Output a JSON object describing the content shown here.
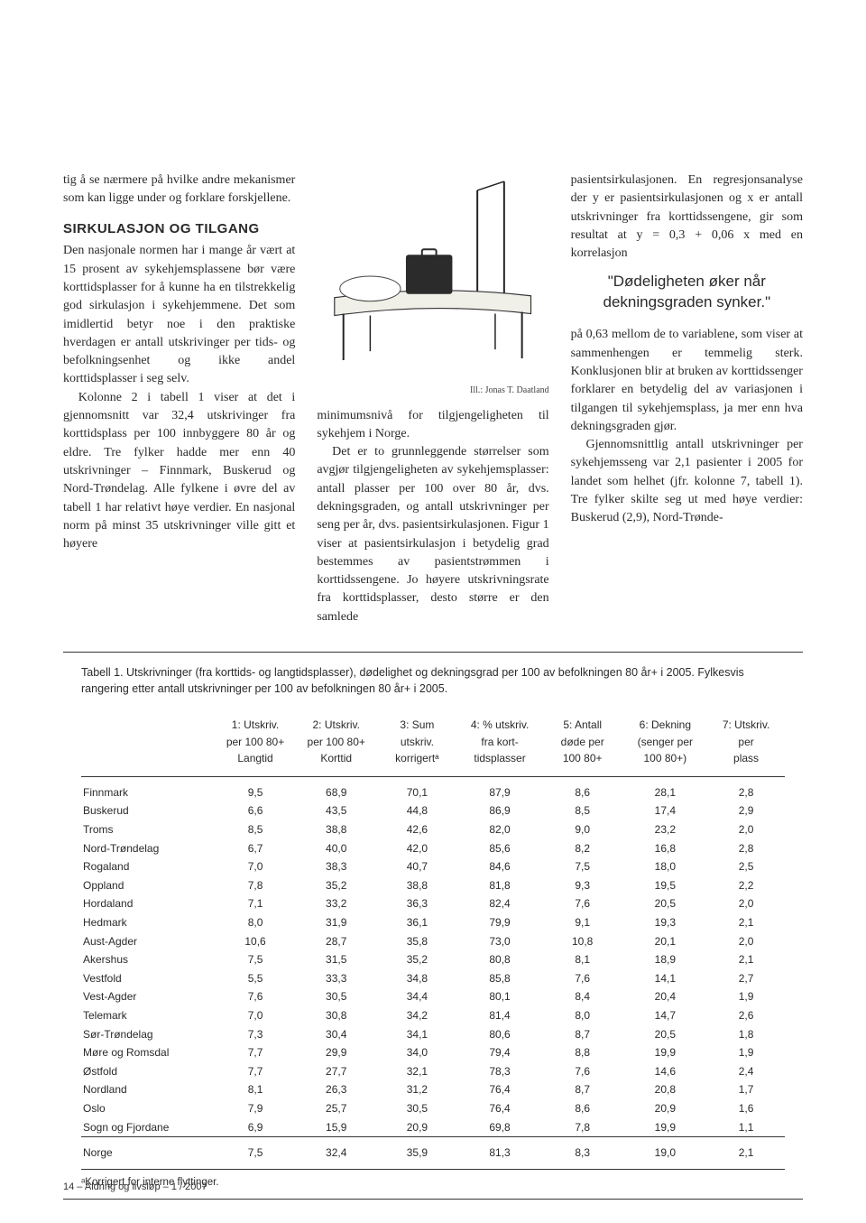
{
  "col1": {
    "intro": "tig å se nærmere på hvilke andre mekanismer som kan ligge under og forklare forskjellene.",
    "heading": "SIRKULASJON OG TILGANG",
    "p1": "Den nasjonale normen har i mange år vært at 15 prosent av sykehjems­plassene bør være korttidsplasser for å kunne ha en tilstrekkelig god sir­kulasjon i sykehjemmene. Det som imidlertid betyr noe i den praktiske hverdagen er antall utskrivinger per tids- og befolkningsenhet og ikke andel korttidsplasser i seg selv.",
    "p2": "Kolonne 2 i tabell 1 viser at det i gjennomsnitt var 32,4 utskrivinger fra korttidsplass per 100 innbyggere 80 år og eldre. Tre fylker hadde mer enn 40 utskrivninger – Finnmark, Buske­rud og Nord-Trøndelag. Alle fylkene i øvre del av tabell 1 har relativt høye verdier. En nasjonal norm på minst 35 utskrivninger ville gitt et høyere"
  },
  "col2": {
    "illCaption": "Ill.: Jonas T. Daatland",
    "p1": "minimumsnivå for tilgjengeligheten til sykehjem i Norge.",
    "p2": "Det er to grunnleggende størrel­ser som avgjør tilgjengeligheten av sykehjemsplasser: antall plasser per 100 over 80 år, dvs. dekningsgraden, og antall utskrivninger per seng per år, dvs. pasientsirkulasjonen. Figur 1 viser at pasientsirkulasjon i bety­delig grad bestemmes av pasient­strømmen i korttidssengene. Jo høy­ere utskrivningsrate fra korttids­plasser, desto større er den samlede"
  },
  "col3": {
    "p1": "pasientsirkulasjonen. En regresjons­analyse der y er pasientsirkulasjonen og x er antall utskrivninger fra korttidssengene, gir som resultat at y = 0,3 + 0,06 x med en korrelasjon",
    "pull": "\"Dødeligheten øker når deknings­graden synker.\"",
    "p2": "på 0,63 mellom de to variablene, som viser at sammenhengen er tem­melig sterk. Konklusjonen blir at bruken av korttidssenger forklarer en betydelig del av variasjonen i tilgan­gen til sykehjemsplass, ja mer enn hva dekningsgraden gjør.",
    "p3": "Gjennomsnittlig antall utskriv­ninger per sykehjemsseng var 2,1 pasienter i 2005 for landet som hel­het (jfr. kolonne 7, tabell 1). Tre fylker skilte seg ut med høye ver­dier: Buskerud (2,9), Nord-Trønde-"
  },
  "table": {
    "caption": "Tabell 1. Utskrivninger (fra korttids- og langtidsplasser), dødelighet og dekningsgrad per 100 av befolkningen 80 år+ i 2005. Fylkesvis rangering etter antall utskrivninger per 100 av befolkningen 80 år+ i 2005.",
    "columns": [
      "",
      "1: Utskriv.\nper 100 80+\nLangtid",
      "2: Utskriv.\nper 100 80+\nKorttid",
      "3: Sum\nutskriv.\nkorrigertᵃ",
      "4: % utskriv.\nfra kort-\ntidsplasser",
      "5: Antall\ndøde per\n100 80+",
      "6: Dekning\n(senger per\n100 80+)",
      "7: Utskriv.\nper\nplass"
    ],
    "rows": [
      [
        "Finnmark",
        "9,5",
        "68,9",
        "70,1",
        "87,9",
        "8,6",
        "28,1",
        "2,8"
      ],
      [
        "Buskerud",
        "6,6",
        "43,5",
        "44,8",
        "86,9",
        "8,5",
        "17,4",
        "2,9"
      ],
      [
        "Troms",
        "8,5",
        "38,8",
        "42,6",
        "82,0",
        "9,0",
        "23,2",
        "2,0"
      ],
      [
        "Nord-Trøndelag",
        "6,7",
        "40,0",
        "42,0",
        "85,6",
        "8,2",
        "16,8",
        "2,8"
      ],
      [
        "Rogaland",
        "7,0",
        "38,3",
        "40,7",
        "84,6",
        "7,5",
        "18,0",
        "2,5"
      ],
      [
        "Oppland",
        "7,8",
        "35,2",
        "38,8",
        "81,8",
        "9,3",
        "19,5",
        "2,2"
      ],
      [
        "Hordaland",
        "7,1",
        "33,2",
        "36,3",
        "82,4",
        "7,6",
        "20,5",
        "2,0"
      ],
      [
        "Hedmark",
        "8,0",
        "31,9",
        "36,1",
        "79,9",
        "9,1",
        "19,3",
        "2,1"
      ],
      [
        "Aust-Agder",
        "10,6",
        "28,7",
        "35,8",
        "73,0",
        "10,8",
        "20,1",
        "2,0"
      ],
      [
        "Akershus",
        "7,5",
        "31,5",
        "35,2",
        "80,8",
        "8,1",
        "18,9",
        "2,1"
      ],
      [
        "Vestfold",
        "5,5",
        "33,3",
        "34,8",
        "85,8",
        "7,6",
        "14,1",
        "2,7"
      ],
      [
        "Vest-Agder",
        "7,6",
        "30,5",
        "34,4",
        "80,1",
        "8,4",
        "20,4",
        "1,9"
      ],
      [
        "Telemark",
        "7,0",
        "30,8",
        "34,2",
        "81,4",
        "8,0",
        "14,7",
        "2,6"
      ],
      [
        "Sør-Trøndelag",
        "7,3",
        "30,4",
        "34,1",
        "80,6",
        "8,7",
        "20,5",
        "1,8"
      ],
      [
        "Møre og Romsdal",
        "7,7",
        "29,9",
        "34,0",
        "79,4",
        "8,8",
        "19,9",
        "1,9"
      ],
      [
        "Østfold",
        "7,7",
        "27,7",
        "32,1",
        "78,3",
        "7,6",
        "14,6",
        "2,4"
      ],
      [
        "Nordland",
        "8,1",
        "26,3",
        "31,2",
        "76,4",
        "8,7",
        "20,8",
        "1,7"
      ],
      [
        "Oslo",
        "7,9",
        "25,7",
        "30,5",
        "76,4",
        "8,6",
        "20,9",
        "1,6"
      ],
      [
        "Sogn og Fjordane",
        "6,9",
        "15,9",
        "20,9",
        "69,8",
        "7,8",
        "19,9",
        "1,1"
      ]
    ],
    "total": [
      "Norge",
      "7,5",
      "32,4",
      "35,9",
      "81,3",
      "8,3",
      "19,0",
      "2,1"
    ],
    "footnote": "ᵃKorrigert for interne flyttinger.",
    "col_widths": [
      "19%",
      "11.5%",
      "11.5%",
      "11.5%",
      "12%",
      "11.5%",
      "12%",
      "11%"
    ]
  },
  "footer": "14 – Aldring og livsløp – 1 / 2007",
  "style": {
    "bg": "#ffffff",
    "text": "#2a2a2a",
    "rule": "#333333",
    "body_font": "Georgia, 'Times New Roman', serif",
    "sans_font": "Arial, Helvetica, sans-serif",
    "body_size": 14,
    "table_size": 12
  }
}
